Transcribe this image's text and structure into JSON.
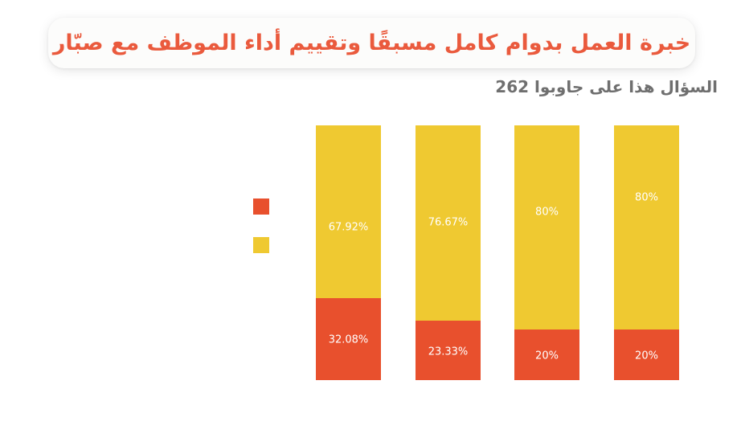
{
  "title": {
    "text": "خبرة العمل بدوام كامل مسبقًا وتقييم أداء الموظف مع صبّار",
    "color": "#EA5A3D"
  },
  "subtitle": {
    "text": "262 جاوبوا على هذا السؤال",
    "respondent_count": 262,
    "color": "#6F6F6F"
  },
  "legend": {
    "position": "left-of-bars",
    "swatches": [
      {
        "name": "orange-series-swatch",
        "color": "#E8502D"
      },
      {
        "name": "yellow-series-swatch",
        "color": "#EFC931"
      }
    ]
  },
  "chart_data": {
    "type": "bar",
    "subtype": "stacked-100-percent",
    "orientation": "vertical",
    "categories": [
      "",
      "",
      "",
      ""
    ],
    "series": [
      {
        "name": "orange-bottom",
        "color": "#E8502D",
        "values": [
          32.08,
          23.33,
          20,
          20
        ]
      },
      {
        "name": "yellow-top",
        "color": "#EFC931",
        "values": [
          67.92,
          76.67,
          80,
          80
        ]
      }
    ],
    "value_labels_shown": true,
    "value_label_format": "percent",
    "value_label_color": "#FFFFFF",
    "ylim": [
      0,
      100
    ],
    "grid": false,
    "axes_labels_shown": false,
    "legend_position": "left",
    "layout": {
      "label_y_frac": {
        "yellow-top": [
          0.401,
          0.381,
          0.341,
          0.284
        ],
        "orange-bottom": [
          0.843,
          0.891,
          0.904,
          0.904
        ]
      }
    }
  }
}
